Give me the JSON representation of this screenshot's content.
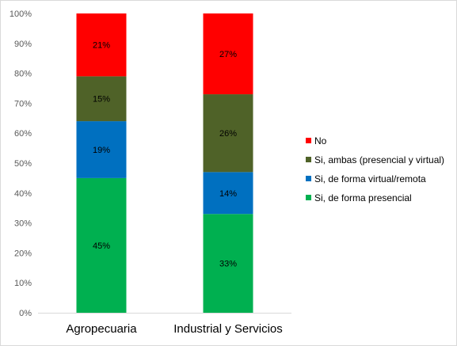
{
  "chart_data": {
    "type": "bar",
    "stacked": true,
    "percent_stacked": true,
    "title": "",
    "xlabel": "",
    "ylabel": "",
    "ylim": [
      0,
      100
    ],
    "yticks": [
      "0%",
      "10%",
      "20%",
      "30%",
      "40%",
      "50%",
      "60%",
      "70%",
      "80%",
      "90%",
      "100%"
    ],
    "categories": [
      "Agropecuaria",
      "Industrial y Servicios"
    ],
    "series": [
      {
        "name": "Si, de forma presencial",
        "values": [
          45,
          33
        ],
        "labels": [
          "45%",
          "33%"
        ],
        "color": "#00b050"
      },
      {
        "name": "Si, de forma virtual/remota",
        "values": [
          19,
          14
        ],
        "labels": [
          "19%",
          "14%"
        ],
        "color": "#0070c0"
      },
      {
        "name": "Si, ambas (presencial y virtual)",
        "values": [
          15,
          26
        ],
        "labels": [
          "15%",
          "26%"
        ],
        "color": "#4f6228"
      },
      {
        "name": "No",
        "values": [
          21,
          27
        ],
        "labels": [
          "21%",
          "27%"
        ],
        "color": "#ff0000"
      }
    ],
    "legend_order": [
      "No",
      "Si, ambas (presencial y virtual)",
      "Si, de forma virtual/remota",
      "Si, de forma presencial"
    ],
    "legend_position": "right",
    "grid": false,
    "axis_color": "#d9d9d9"
  }
}
